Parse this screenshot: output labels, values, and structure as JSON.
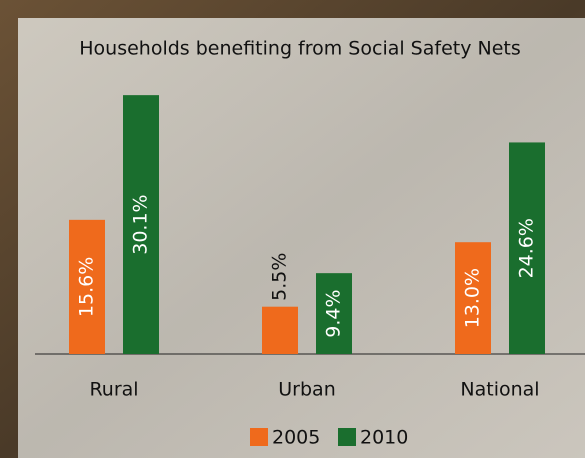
{
  "chart_data": {
    "type": "bar",
    "title": "Households benefiting from Social Safety Nets",
    "categories": [
      "Rural",
      "Urban",
      "National"
    ],
    "series": [
      {
        "name": "2005",
        "color": "#ef6a1c",
        "values": [
          15.6,
          5.5,
          13.0
        ],
        "value_labels": [
          "15.6%",
          "5.5%",
          "13.0%"
        ]
      },
      {
        "name": "2010",
        "color": "#1a6e2e",
        "values": [
          30.1,
          9.4,
          24.6
        ],
        "value_labels": [
          "30.1%",
          "9.4%",
          "24.6%"
        ]
      }
    ]
  }
}
